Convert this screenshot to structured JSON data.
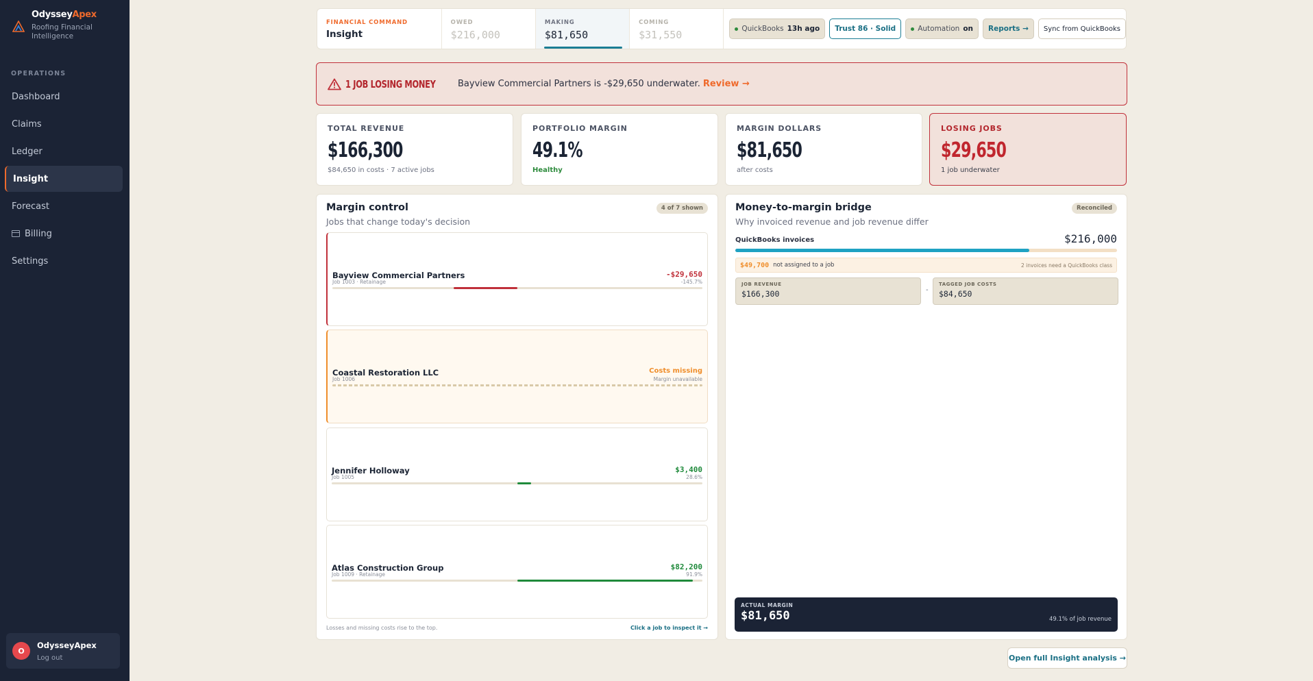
{
  "brand": {
    "name_main": "Odyssey",
    "name_accent": "Apex",
    "subtitle": "Roofing Financial Intelligence"
  },
  "sidebar": {
    "section_label": "OPERATIONS",
    "items": [
      {
        "label": "Dashboard",
        "active": false
      },
      {
        "label": "Claims",
        "active": false
      },
      {
        "label": "Ledger",
        "active": false
      },
      {
        "label": "Insight",
        "active": true
      },
      {
        "label": "Forecast",
        "active": false
      },
      {
        "label": "Billing",
        "active": false,
        "icon": "billing-icon"
      },
      {
        "label": "Settings",
        "active": false
      }
    ],
    "user": {
      "initial": "O",
      "name": "OdysseyApex",
      "logout_label": "Log out"
    }
  },
  "topbar": {
    "section_label": "FINANCIAL COMMAND",
    "section_title": "Insight",
    "tabs": [
      {
        "label": "OWED",
        "value": "$216,000"
      },
      {
        "label": "MAKING",
        "value": "$81,650",
        "active": true
      },
      {
        "label": "COMING",
        "value": "$31,550"
      }
    ],
    "quickbooks": {
      "label": "QuickBooks",
      "time": "13h ago"
    },
    "trust": "Trust 86 · Solid",
    "automation": {
      "label": "Automation",
      "state": "on"
    },
    "reports_label": "Reports →",
    "sync_label": "Sync from QuickBooks"
  },
  "alert": {
    "title": "1 JOB LOSING MONEY",
    "message": "Bayview Commercial Partners is -$29,650 underwater.",
    "link": "Review →"
  },
  "kpis": [
    {
      "label": "TOTAL REVENUE",
      "value": "$166,300",
      "sub": "$84,650 in costs · 7 active jobs"
    },
    {
      "label": "PORTFOLIO MARGIN",
      "value": "49.1%",
      "sub": "Healthy"
    },
    {
      "label": "MARGIN DOLLARS",
      "value": "$81,650",
      "sub": "after costs"
    },
    {
      "label": "LOSING JOBS",
      "value": "$29,650",
      "sub": "1 job underwater"
    }
  ],
  "margin_control": {
    "title": "Margin control",
    "subtitle": "Jobs that change today's decision",
    "badge": "4 of 7 shown",
    "jobs": [
      {
        "name": "Bayview Commercial Partners",
        "meta": "Job 1003 · Retainage",
        "amount": "-$29,650",
        "pct": "-145.7%",
        "status": "loss",
        "bar_start": 0.328,
        "bar_end": 0.5
      },
      {
        "name": "Coastal Restoration LLC",
        "meta": "Job 1006",
        "amount": "Costs missing",
        "pct": "Margin unavailable",
        "status": "missing"
      },
      {
        "name": "Jennifer Holloway",
        "meta": "Job 1005",
        "amount": "$3,400",
        "pct": "28.6%",
        "status": "gain",
        "bar_start": 0.5,
        "bar_end": 0.537
      },
      {
        "name": "Atlas Construction Group",
        "meta": "Job 1009 · Retainage",
        "amount": "$82,200",
        "pct": "91.9%",
        "status": "gain",
        "bar_start": 0.5,
        "bar_end": 0.975
      }
    ],
    "footer_note": "Losses and missing costs rise to the top.",
    "footer_link": "Click a job to inspect it →"
  },
  "bridge": {
    "title": "Money-to-margin bridge",
    "subtitle": "Why invoiced revenue and job revenue differ",
    "badge": "Reconciled",
    "qb_label": "QuickBooks invoices",
    "qb_value": "$216,000",
    "qb_fill_fraction": 0.77,
    "unassigned_amount": "$49,700",
    "unassigned_text": "not assigned to a job",
    "unassigned_note": "2 invoices need a QuickBooks class",
    "job_revenue_label": "JOB REVENUE",
    "job_revenue_value": "$166,300",
    "minus": "-",
    "tagged_costs_label": "TAGGED JOB COSTS",
    "tagged_costs_value": "$84,650",
    "actual_margin_label": "ACTUAL MARGIN",
    "actual_margin_value": "$81,650",
    "actual_margin_pct": "49.1% of job revenue"
  },
  "open_analysis_label": "Open full Insight analysis →",
  "colors": {
    "accent": "#ef6a2c",
    "teal": "#1a7d94",
    "loss": "#c0303a",
    "gain": "#1f8a3b",
    "missing": "#ef8e2c",
    "navy": "#1b2335"
  }
}
